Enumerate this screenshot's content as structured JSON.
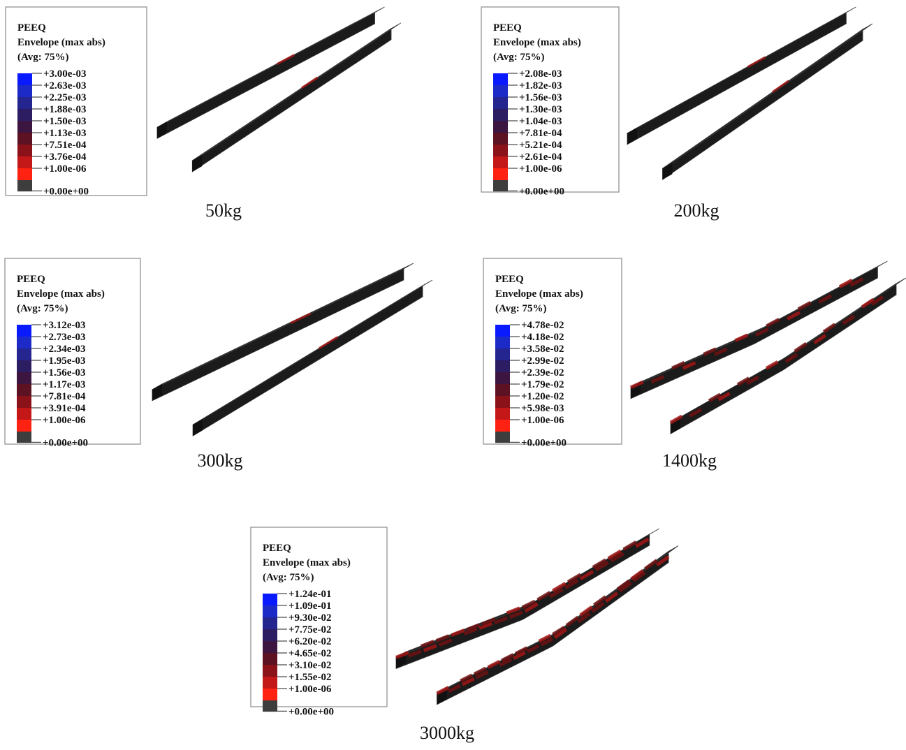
{
  "panels": [
    {
      "legend": {
        "title": [
          "PEEQ",
          "Envelope (max abs)",
          "(Avg: 75%)"
        ],
        "labels": [
          "+3.00e-03",
          "+2.63e-03",
          "+2.25e-03",
          "+1.88e-03",
          "+1.50e-03",
          "+1.13e-03",
          "+7.51e-04",
          "+3.76e-04",
          "+1.00e-06",
          "+0.00e+00"
        ]
      },
      "caption": "50kg"
    },
    {
      "legend": {
        "title": [
          "PEEQ",
          "Envelope (max abs)",
          "(Avg: 75%)"
        ],
        "labels": [
          "+2.08e-03",
          "+1.82e-03",
          "+1.56e-03",
          "+1.30e-03",
          "+1.04e-03",
          "+7.81e-04",
          "+5.21e-04",
          "+2.61e-04",
          "+1.00e-06",
          "+0.00e+00"
        ]
      },
      "caption": "200kg"
    },
    {
      "legend": {
        "title": [
          "PEEQ",
          "Envelope (max abs)",
          "(Avg: 75%)"
        ],
        "labels": [
          "+3.12e-03",
          "+2.73e-03",
          "+2.34e-03",
          "+1.95e-03",
          "+1.56e-03",
          "+1.17e-03",
          "+7.81e-04",
          "+3.91e-04",
          "+1.00e-06",
          "+0.00e+00"
        ]
      },
      "caption": "300kg"
    },
    {
      "legend": {
        "title": [
          "PEEQ",
          "Envelope (max abs)",
          "(Avg: 75%)"
        ],
        "labels": [
          "+4.78e-02",
          "+4.18e-02",
          "+3.58e-02",
          "+2.99e-02",
          "+2.39e-02",
          "+1.79e-02",
          "+1.20e-02",
          "+5.98e-03",
          "+1.00e-06",
          "+0.00e+00"
        ]
      },
      "caption": "1400kg"
    },
    {
      "legend": {
        "title": [
          "PEEQ",
          "Envelope (max abs)",
          "(Avg: 75%)"
        ],
        "labels": [
          "+1.24e-01",
          "+1.09e-01",
          "+9.30e-02",
          "+7.75e-02",
          "+6.20e-02",
          "+4.65e-02",
          "+3.10e-02",
          "+1.55e-02",
          "+1.00e-06",
          "+0.00e+00"
        ]
      },
      "caption": "3000kg"
    }
  ]
}
